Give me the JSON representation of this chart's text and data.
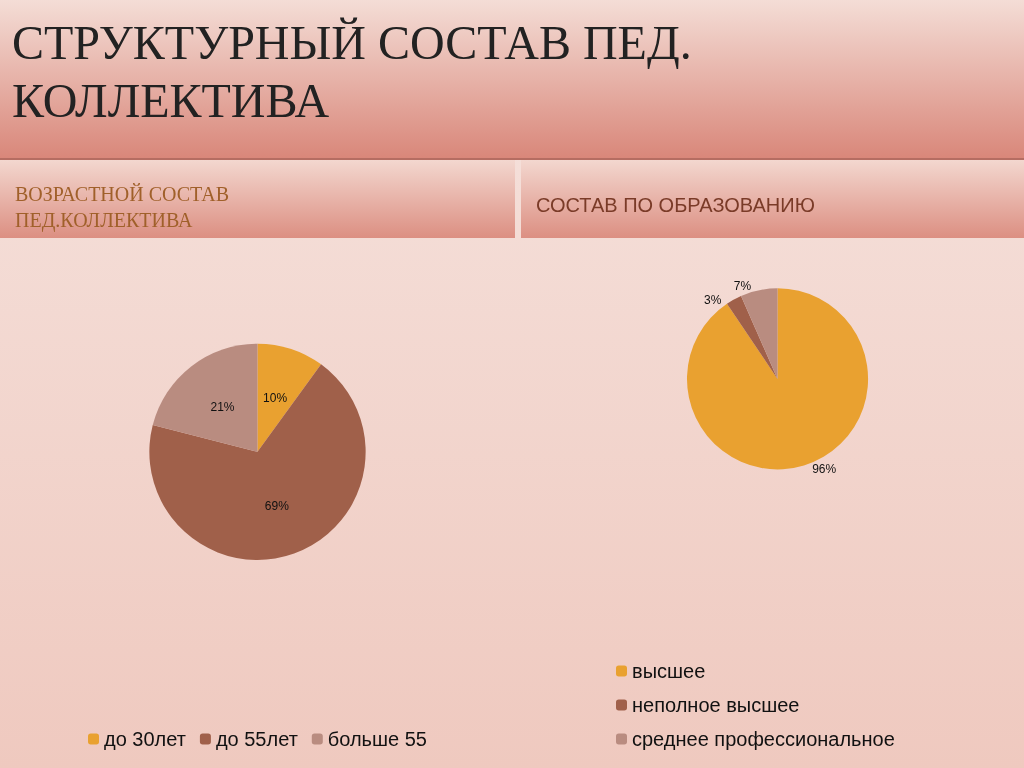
{
  "chart_data": [
    {
      "type": "pie",
      "title": "СТРУКТУРНЫЙ СОСТАВ ПЕД. КОЛЛЕКТИВА",
      "subtitle": "ВОЗРАСТНОЙ СОСТАВ ПЕД.КОЛЛЕКТИВА",
      "categories": [
        "до 30лет",
        "до 55лет",
        "больше 55"
      ],
      "values": [
        10,
        69,
        21
      ],
      "colors": [
        "#e9a130",
        "#a0604a",
        "#b98c80"
      ],
      "value_labels": [
        "10%",
        "69%",
        "21%"
      ],
      "legend": "bottom"
    },
    {
      "type": "pie",
      "title": "СОСТАВ ПО ОБРАЗОВАНИЮ",
      "categories": [
        "высшее",
        "неполное высшее",
        "среднее профессиональное"
      ],
      "values": [
        96,
        3,
        7
      ],
      "colors": [
        "#e9a130",
        "#a0604a",
        "#b98c80"
      ],
      "value_labels": [
        "96%",
        "3%",
        "7%"
      ],
      "legend": "bottom"
    }
  ]
}
